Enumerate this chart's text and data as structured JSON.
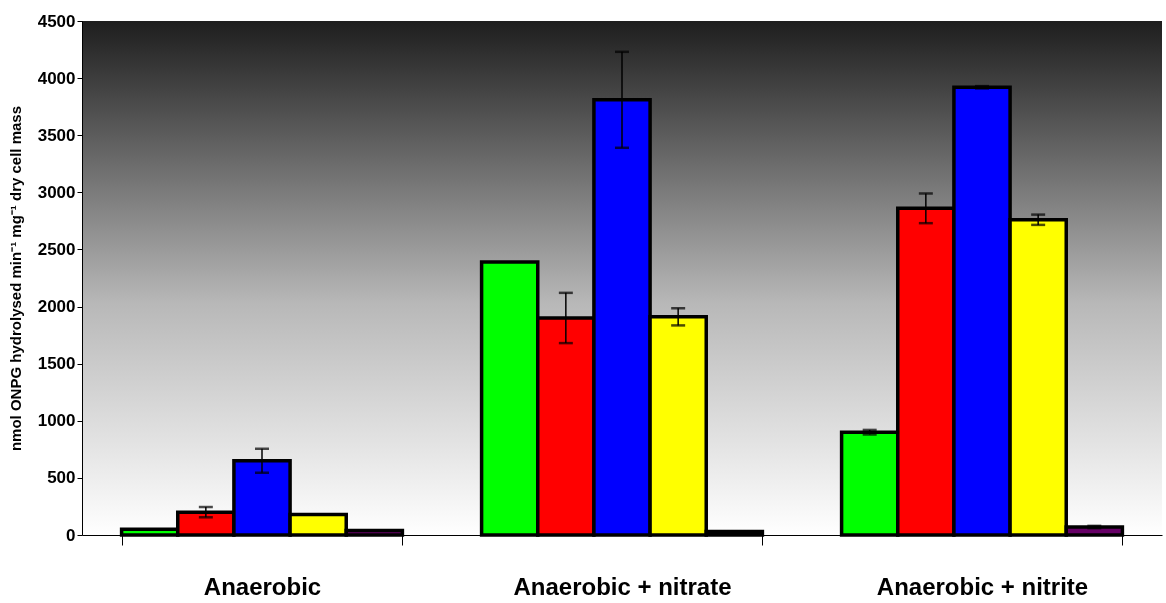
{
  "chart_data": {
    "type": "bar",
    "ylabel": "nmol ONPG hydrolysed min⁻¹ mg⁻¹ dry cell mass",
    "categories": [
      "Anaerobic",
      "Anaerobic + nitrate",
      "Anaerobic + nitrite"
    ],
    "series": [
      {
        "color": "#00ff00",
        "values": [
          50,
          2390,
          900
        ],
        "errors": [
          null,
          null,
          20
        ]
      },
      {
        "color": "#ff0000",
        "values": [
          200,
          1900,
          2860
        ],
        "errors": [
          45,
          220,
          130
        ]
      },
      {
        "color": "#0000ff",
        "values": [
          650,
          3810,
          3920
        ],
        "errors": [
          105,
          420,
          10
        ]
      },
      {
        "color": "#ffff00",
        "values": [
          180,
          1910,
          2760
        ],
        "errors": [
          null,
          75,
          45
        ]
      },
      {
        "color": "#660066",
        "values": [
          40,
          30,
          70
        ],
        "errors": [
          null,
          null,
          10
        ]
      }
    ],
    "ylim": [
      0,
      4500
    ],
    "yticks": [
      0,
      500,
      1000,
      1500,
      2000,
      2500,
      3000,
      3500,
      4000,
      4500
    ],
    "grid": false,
    "legend": false
  }
}
